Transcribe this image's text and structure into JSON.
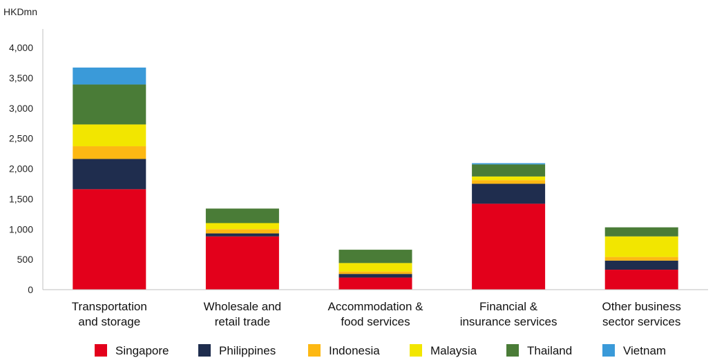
{
  "chart_data": {
    "type": "bar",
    "stacked": true,
    "unit_label": "HKDmn",
    "categories": [
      [
        "Transportation",
        "and storage"
      ],
      [
        "Wholesale and",
        "retail trade"
      ],
      [
        "Accommodation &",
        "food services"
      ],
      [
        "Financial &",
        "insurance services"
      ],
      [
        "Other business",
        "sector services"
      ]
    ],
    "series": [
      {
        "name": "Singapore",
        "color": "#e3001b",
        "values": [
          1660,
          880,
          200,
          1420,
          330
        ]
      },
      {
        "name": "Philippines",
        "color": "#1f2d4e",
        "values": [
          500,
          50,
          60,
          330,
          150
        ]
      },
      {
        "name": "Indonesia",
        "color": "#fdb813",
        "values": [
          210,
          70,
          40,
          60,
          60
        ]
      },
      {
        "name": "Malaysia",
        "color": "#f2e600",
        "values": [
          360,
          100,
          140,
          60,
          340
        ]
      },
      {
        "name": "Thailand",
        "color": "#4a7c37",
        "values": [
          660,
          240,
          220,
          200,
          150
        ]
      },
      {
        "name": "Vietnam",
        "color": "#3a9ad9",
        "values": [
          280,
          0,
          0,
          20,
          0
        ]
      }
    ],
    "y_ticks": [
      "0",
      "500",
      "1,000",
      "1,500",
      "2,000",
      "2,500",
      "3,000",
      "3,500",
      "4,000"
    ],
    "ylim": [
      0,
      4000
    ],
    "grid": false,
    "legend_position": "bottom"
  }
}
